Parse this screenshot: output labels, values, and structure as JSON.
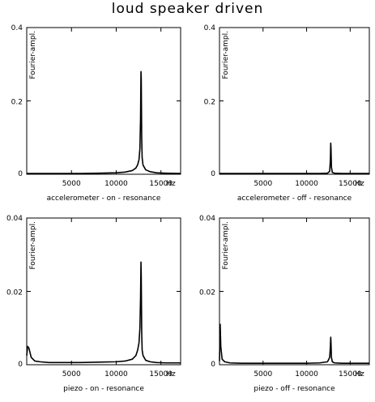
{
  "title": "loud speaker driven",
  "chart_data": [
    {
      "id": "accel-on",
      "type": "line",
      "xlabel": "accelerometer - on - resonance",
      "ylabel": "Fourier-ampl.",
      "x_unit": "Hz",
      "xlim": [
        0,
        17200
      ],
      "ylim": [
        0,
        0.4
      ],
      "x_ticks": [
        5000,
        10000,
        15000
      ],
      "y_ticks": [
        0,
        0.2,
        0.4
      ],
      "y_tick_labels": [
        "0",
        "0.2",
        "0.4"
      ],
      "grid": false,
      "series": [
        {
          "x": [
            0,
            2000,
            4000,
            6000,
            8000,
            10000,
            11000,
            11800,
            12200,
            12400,
            12550,
            12650,
            12720,
            12770,
            12800,
            12850,
            12900,
            13000,
            13300,
            13800,
            14500,
            15500,
            17200
          ],
          "y": [
            0.002,
            0.002,
            0.002,
            0.002,
            0.003,
            0.004,
            0.006,
            0.01,
            0.017,
            0.026,
            0.04,
            0.07,
            0.15,
            0.28,
            0.26,
            0.1,
            0.045,
            0.025,
            0.012,
            0.007,
            0.004,
            0.003,
            0.002
          ]
        }
      ]
    },
    {
      "id": "accel-off",
      "type": "line",
      "xlabel": "accelerometer - off - resonance",
      "ylabel": "Fourier-ampl.",
      "x_unit": "Hz",
      "xlim": [
        0,
        17200
      ],
      "ylim": [
        0,
        0.4
      ],
      "x_ticks": [
        5000,
        10000,
        15000
      ],
      "y_ticks": [
        0,
        0.2,
        0.4
      ],
      "y_tick_labels": [
        "0",
        "0.2",
        "0.4"
      ],
      "grid": false,
      "series": [
        {
          "x": [
            0,
            2000,
            4000,
            6000,
            8000,
            10000,
            11500,
            12400,
            12650,
            12730,
            12770,
            12800,
            12850,
            12950,
            13200,
            14000,
            16000,
            17200
          ],
          "y": [
            0.002,
            0.002,
            0.002,
            0.002,
            0.002,
            0.002,
            0.002,
            0.003,
            0.008,
            0.04,
            0.085,
            0.07,
            0.02,
            0.005,
            0.003,
            0.002,
            0.002,
            0.002
          ]
        }
      ]
    },
    {
      "id": "piezo-on",
      "type": "line",
      "xlabel": "piezo - on - resonance",
      "ylabel": "Fourier-ampl.",
      "x_unit": "Hz",
      "xlim": [
        0,
        17200
      ],
      "ylim": [
        0,
        0.04
      ],
      "x_ticks": [
        5000,
        10000,
        15000
      ],
      "y_ticks": [
        0,
        0.02,
        0.04
      ],
      "y_tick_labels": [
        "0",
        "0.02",
        "0.04"
      ],
      "grid": false,
      "series": [
        {
          "x": [
            0,
            100,
            250,
            500,
            900,
            1500,
            2500,
            4000,
            6000,
            8000,
            10000,
            11000,
            11800,
            12200,
            12400,
            12550,
            12650,
            12720,
            12770,
            12800,
            12850,
            12900,
            13000,
            13300,
            13800,
            14500,
            15500,
            17200
          ],
          "y": [
            0.0025,
            0.005,
            0.0045,
            0.002,
            0.001,
            0.0008,
            0.0006,
            0.0006,
            0.0006,
            0.0007,
            0.0008,
            0.001,
            0.0015,
            0.0025,
            0.004,
            0.006,
            0.01,
            0.018,
            0.028,
            0.024,
            0.009,
            0.004,
            0.0025,
            0.0012,
            0.0008,
            0.0006,
            0.0005,
            0.0005
          ]
        }
      ]
    },
    {
      "id": "piezo-off",
      "type": "line",
      "xlabel": "piezo - off - resonance",
      "ylabel": "Fourier-ampl.",
      "x_unit": "Hz",
      "xlim": [
        0,
        17200
      ],
      "ylim": [
        0,
        0.04
      ],
      "x_ticks": [
        5000,
        10000,
        15000
      ],
      "y_ticks": [
        0,
        0.02,
        0.04
      ],
      "y_tick_labels": [
        "0",
        "0.02",
        "0.04"
      ],
      "grid": false,
      "series": [
        {
          "x": [
            0,
            80,
            150,
            300,
            600,
            1200,
            2500,
            4000,
            6000,
            8000,
            10000,
            11500,
            12400,
            12650,
            12730,
            12770,
            12800,
            12850,
            12950,
            13200,
            14000,
            16000,
            17200
          ],
          "y": [
            0.001,
            0.011,
            0.005,
            0.0015,
            0.0008,
            0.0005,
            0.0004,
            0.0004,
            0.0004,
            0.0004,
            0.0004,
            0.0005,
            0.0008,
            0.002,
            0.005,
            0.0075,
            0.006,
            0.002,
            0.0008,
            0.0005,
            0.0004,
            0.0004,
            0.0004
          ]
        }
      ]
    }
  ]
}
